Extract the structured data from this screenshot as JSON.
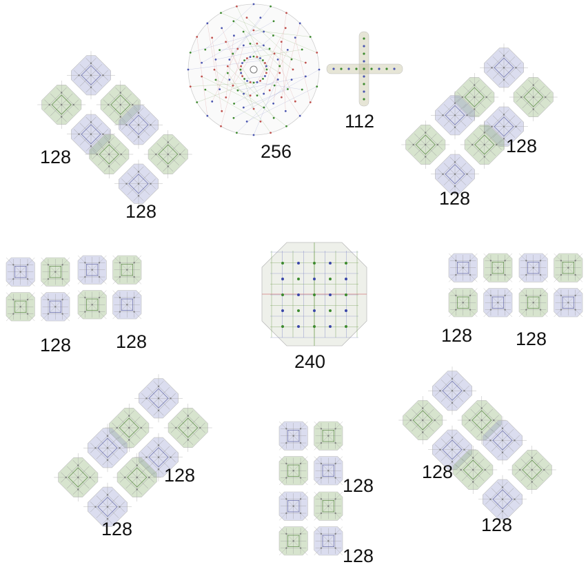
{
  "colors": {
    "blue": "#7f86c4",
    "green": "#6f9e4f",
    "olive": "#b7b489",
    "red": "#d27d7d",
    "line": "#c9c9c9"
  },
  "labels": {
    "top_circle": "256",
    "top_cross": "112",
    "center": "240",
    "tl_a": "128",
    "tl_b": "128",
    "tr_a": "128",
    "tr_b": "128",
    "ml_a": "128",
    "ml_b": "128",
    "mr_a": "128",
    "mr_b": "128",
    "bl_a": "128",
    "bl_b": "128",
    "bc_a": "128",
    "bc_b": "128",
    "br_a": "128",
    "br_b": "128"
  }
}
